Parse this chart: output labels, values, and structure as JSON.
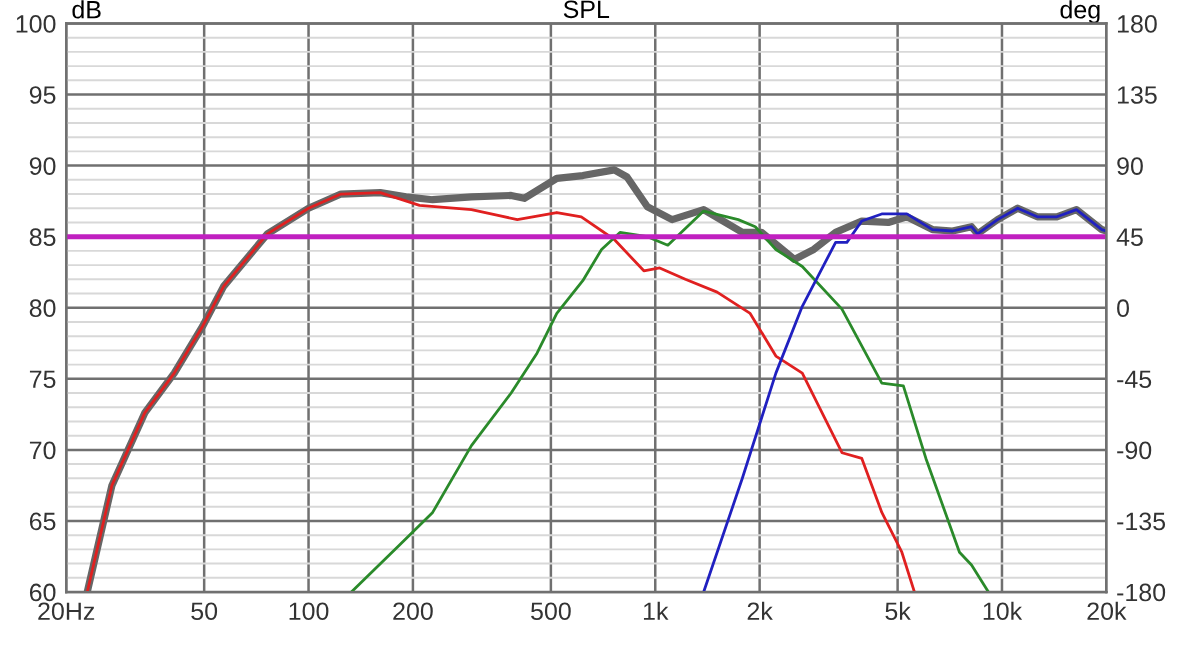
{
  "chart_data": {
    "type": "line",
    "title": "SPL",
    "ylabel": "dB",
    "y2label": "deg",
    "xlim": [
      20,
      20000
    ],
    "ylim": [
      60,
      100
    ],
    "y2lim": [
      -180,
      180
    ],
    "log": "x",
    "grid": true,
    "marker": "none",
    "line_style": "solid",
    "xticks": [
      {
        "value": 20,
        "label": "20Hz"
      },
      50,
      100,
      200,
      500,
      {
        "value": 1000,
        "label": "1k"
      },
      {
        "value": 2000,
        "label": "2k"
      },
      {
        "value": 5000,
        "label": "5k"
      },
      {
        "value": 10000,
        "label": "10k"
      },
      {
        "value": 20000,
        "label": "20k"
      }
    ],
    "yticks": [
      60,
      65,
      70,
      75,
      80,
      85,
      90,
      95,
      100
    ],
    "y2ticks": [
      -180,
      -135,
      -90,
      -45,
      0,
      45,
      90,
      135,
      180
    ],
    "ref_lines": [
      {
        "axis": "y",
        "value": 85,
        "color": "#c020c0"
      }
    ],
    "series": [
      {
        "color": "#666666",
        "x": [
          23,
          27.1,
          33.7,
          41,
          49.5,
          56.9,
          76.1,
          100,
          124,
          161,
          191,
          228,
          295,
          384,
          419,
          520,
          618,
          762,
          829,
          949,
          1118,
          1379,
          1783,
          2025,
          2520,
          2865,
          3313,
          3942,
          4700,
          5317,
          6300,
          7200,
          8170,
          8500,
          9710,
          11100,
          12640,
          14400,
          16400,
          19400,
          20000
        ],
        "values": [
          60,
          67.5,
          72.6,
          75.4,
          78.7,
          81.5,
          85.2,
          87,
          88,
          88.1,
          87.8,
          87.6,
          87.8,
          87.9,
          87.7,
          89.1,
          89.3,
          89.7,
          89.2,
          87.1,
          86.2,
          86.9,
          85.3,
          85.3,
          83.4,
          84.1,
          85.3,
          86.1,
          86,
          86.4,
          85.5,
          85.4,
          85.7,
          85.2,
          86.2,
          87,
          86.4,
          86.4,
          86.9,
          85.5,
          85.4
        ]
      },
      {
        "color": "#e02020",
        "x": [
          23,
          27.1,
          33.7,
          41,
          49.5,
          56.9,
          76.1,
          100,
          124,
          161,
          209,
          295,
          352,
          400,
          520,
          612,
          762,
          927,
          1030,
          1221,
          1508,
          1878,
          2228,
          2655,
          3455,
          3942,
          4502,
          5143,
          5591
        ],
        "values": [
          60,
          67.5,
          72.6,
          75.4,
          78.7,
          81.5,
          85.2,
          87,
          88,
          88.1,
          87.2,
          86.9,
          86.5,
          86.2,
          86.7,
          86.4,
          84.8,
          82.6,
          82.8,
          82,
          81.1,
          79.6,
          76.6,
          75.4,
          69.8,
          69.4,
          65.6,
          62.8,
          60
        ]
      },
      {
        "color": "#2a8a2a",
        "x": [
          132.9,
          183,
          228,
          295,
          384,
          456,
          520,
          618,
          700,
          791,
          949,
          1087,
          1379,
          1735,
          1943,
          2228,
          2655,
          3455,
          4502,
          5195,
          6034,
          7540,
          8170,
          9140
        ],
        "values": [
          60,
          63.3,
          65.6,
          70.3,
          74,
          76.8,
          79.6,
          81.9,
          84.1,
          85.3,
          85,
          84.4,
          86.8,
          86.2,
          85.7,
          84.1,
          82.9,
          79.9,
          74.7,
          74.5,
          69.4,
          62.8,
          61.9,
          60
        ]
      },
      {
        "color": "#2020c0",
        "x": [
          1379,
          1783,
          2228,
          2655,
          3313,
          3570,
          3942,
          4500,
          5317,
          6300,
          7200,
          8170,
          8500,
          9710,
          11100,
          12640,
          14400,
          16400,
          19400,
          20000
        ],
        "values": [
          60,
          68,
          75.4,
          80.1,
          84.6,
          84.6,
          86.1,
          86.6,
          86.6,
          85.5,
          85.4,
          85.7,
          85.2,
          86.2,
          87,
          86.4,
          86.4,
          86.9,
          85.5,
          85.4
        ]
      }
    ]
  }
}
